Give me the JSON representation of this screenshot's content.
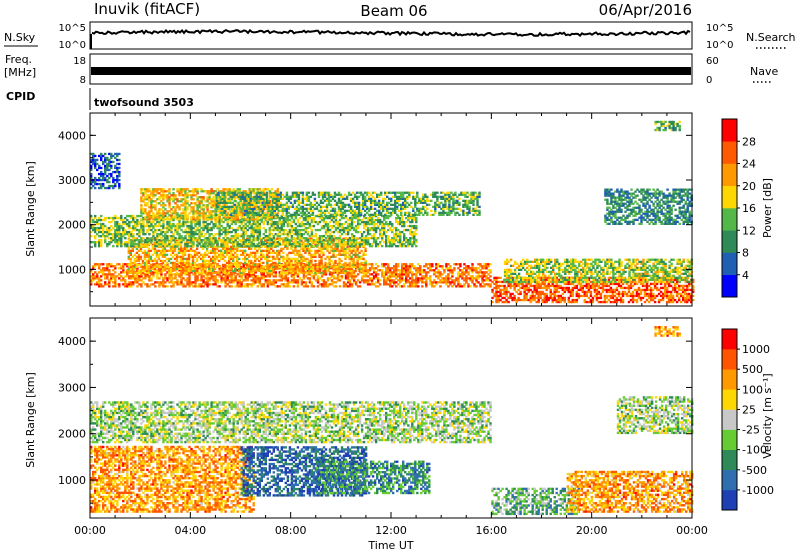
{
  "header": {
    "station": "Inuvik (fitACF)",
    "beam": "Beam 06",
    "date": "06/Apr/2016"
  },
  "top_panels": {
    "nsky_label": "N.Sky",
    "nsearch_label": "N.Search",
    "nsky_ticks": [
      "10^5",
      "10^0"
    ],
    "nsearch_ticks": [
      "10^5",
      "10^0"
    ],
    "freq_label_line1": "Freq.",
    "freq_label_line2": "[MHz]",
    "freq_ticks": [
      "18",
      "8"
    ],
    "nave_label": "Nave",
    "nave_ticks": [
      "60",
      "0"
    ],
    "cpid_label": "CPID",
    "cpid_value": "twofsound 3503"
  },
  "chart_data": [
    {
      "type": "heatmap",
      "name": "power",
      "ylabel": "Slant Range [km]",
      "colorbar_label": "Power [dB]",
      "ylim": [
        180,
        4500
      ],
      "yticks": [
        "1000",
        "2000",
        "3000",
        "4000"
      ],
      "xlim_hours": [
        0,
        24
      ],
      "colorbar_ticks": [
        "4",
        "8",
        "12",
        "16",
        "20",
        "24",
        "28"
      ],
      "colorscale": [
        "#0000ff",
        "#1f5fb4",
        "#2e8b57",
        "#54b848",
        "#ffd700",
        "#ff9900",
        "#ff5a00",
        "#ff0000"
      ],
      "regions": [
        {
          "t0": 0.0,
          "t1": 16.0,
          "r0": 600,
          "r1": 1100,
          "level": 0.75
        },
        {
          "t0": 1.5,
          "t1": 11.0,
          "r0": 900,
          "r1": 1700,
          "level": 0.65
        },
        {
          "t0": 0.0,
          "t1": 13.0,
          "r0": 1500,
          "r1": 2200,
          "level": 0.45
        },
        {
          "t0": 2.0,
          "t1": 7.5,
          "r0": 2100,
          "r1": 2800,
          "level": 0.6
        },
        {
          "t0": 5.0,
          "t1": 15.5,
          "r0": 2200,
          "r1": 2700,
          "level": 0.4
        },
        {
          "t0": 0.0,
          "t1": 1.2,
          "r0": 2800,
          "r1": 3600,
          "level": 0.2
        },
        {
          "t0": 16.0,
          "t1": 24.0,
          "r0": 250,
          "r1": 800,
          "level": 0.8
        },
        {
          "t0": 16.5,
          "t1": 24.0,
          "r0": 700,
          "r1": 1200,
          "level": 0.5
        },
        {
          "t0": 20.5,
          "t1": 24.0,
          "r0": 2000,
          "r1": 2800,
          "level": 0.3
        },
        {
          "t0": 22.5,
          "t1": 23.5,
          "r0": 4100,
          "r1": 4300,
          "level": 0.4
        }
      ]
    },
    {
      "type": "heatmap",
      "name": "velocity",
      "ylabel": "Slant Range [km]",
      "colorbar_label": "Velocity [m s⁻¹]",
      "ylim": [
        180,
        4500
      ],
      "yticks": [
        "1000",
        "2000",
        "3000",
        "4000"
      ],
      "xlim_hours": [
        0,
        24
      ],
      "xticks": [
        "00:00",
        "04:00",
        "08:00",
        "12:00",
        "16:00",
        "20:00",
        "00:00"
      ],
      "xlabel": "Time UT",
      "colorbar_ticks": [
        "1000",
        "500",
        "100",
        "25",
        "-25",
        "-100",
        "-500",
        "-1000"
      ],
      "colorscale": [
        "#1f3fb4",
        "#2f6fb0",
        "#2e8b57",
        "#66cc33",
        "#c8c8c8",
        "#ffd700",
        "#ff9900",
        "#ff5500",
        "#ff0000"
      ],
      "regions": [
        {
          "t0": 0.0,
          "t1": 6.5,
          "r0": 300,
          "r1": 1700,
          "level": 0.72
        },
        {
          "t0": 6.0,
          "t1": 11.0,
          "r0": 650,
          "r1": 1700,
          "level": 0.15
        },
        {
          "t0": 9.0,
          "t1": 13.5,
          "r0": 700,
          "r1": 1400,
          "level": 0.25
        },
        {
          "t0": 0.0,
          "t1": 16.0,
          "r0": 1800,
          "r1": 2700,
          "level": 0.45
        },
        {
          "t0": 16.0,
          "t1": 19.5,
          "r0": 250,
          "r1": 800,
          "level": 0.35
        },
        {
          "t0": 19.0,
          "t1": 24.0,
          "r0": 300,
          "r1": 1200,
          "level": 0.72
        },
        {
          "t0": 21.0,
          "t1": 24.0,
          "r0": 2000,
          "r1": 2800,
          "level": 0.45
        },
        {
          "t0": 22.5,
          "t1": 23.5,
          "r0": 4100,
          "r1": 4300,
          "level": 0.75
        }
      ]
    }
  ]
}
